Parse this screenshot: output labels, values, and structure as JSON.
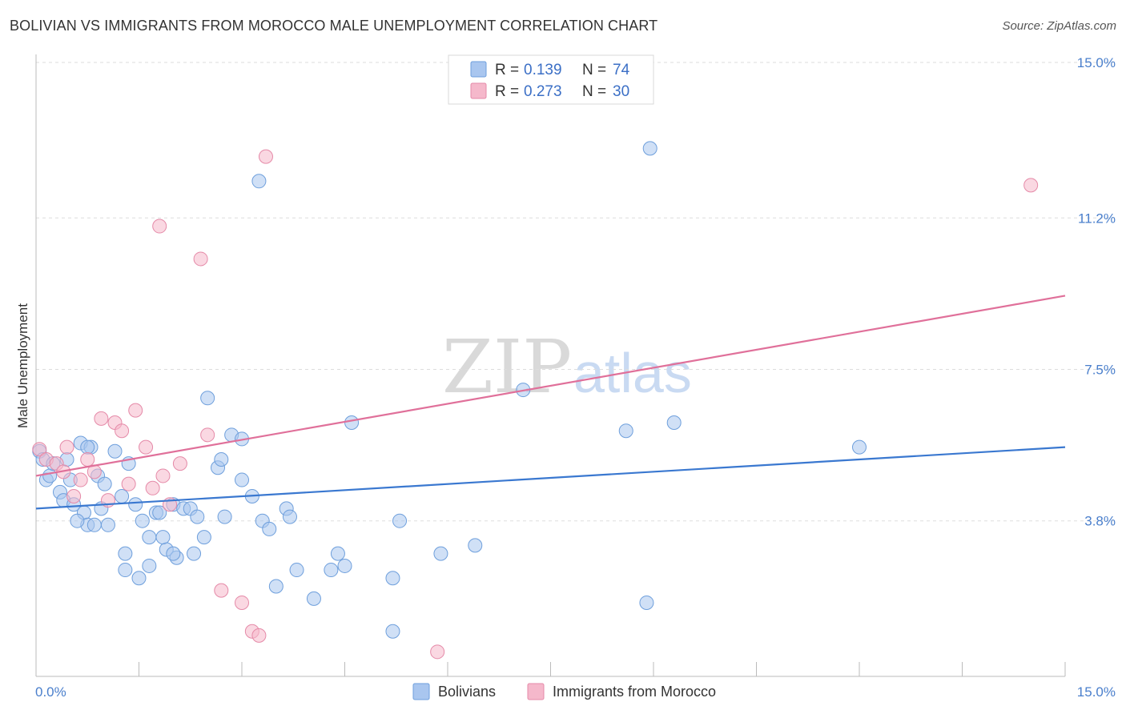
{
  "header": {
    "title": "BOLIVIAN VS IMMIGRANTS FROM MOROCCO MALE UNEMPLOYMENT CORRELATION CHART",
    "source": "Source: ZipAtlas.com"
  },
  "watermark": {
    "zip": "ZIP",
    "atlas": "atlas"
  },
  "stats": [
    {
      "r_label": "R =",
      "r_value": "0.139",
      "n_label": "N =",
      "n_value": "74",
      "color": "#a9c6ef"
    },
    {
      "r_label": "R =",
      "r_value": "0.273",
      "n_label": "N =",
      "n_value": "30",
      "color": "#f5b8cb"
    }
  ],
  "chart_data": {
    "type": "scatter",
    "title": "BOLIVIAN VS IMMIGRANTS FROM MOROCCO MALE UNEMPLOYMENT CORRELATION CHART",
    "xlabel": "",
    "ylabel": "Male Unemployment",
    "xlim": [
      0,
      15
    ],
    "ylim": [
      0,
      15
    ],
    "x_tick_labels": [
      {
        "value": 0,
        "label": "0.0%"
      },
      {
        "value": 15,
        "label": "15.0%"
      }
    ],
    "y_tick_labels": [
      {
        "value": 3.8,
        "label": "3.8%"
      },
      {
        "value": 7.5,
        "label": "7.5%"
      },
      {
        "value": 11.2,
        "label": "11.2%"
      },
      {
        "value": 15.0,
        "label": "15.0%"
      }
    ],
    "grid": true,
    "legend_position": "bottom-center",
    "series": [
      {
        "name": "Bolivians",
        "color": "#a9c6ef",
        "stroke": "#6e9fdc",
        "trend_color": "#3a78d0",
        "trend": {
          "x": [
            0,
            15
          ],
          "y": [
            4.1,
            5.6
          ]
        },
        "points": [
          [
            0.05,
            5.5
          ],
          [
            0.1,
            5.3
          ],
          [
            0.15,
            4.8
          ],
          [
            0.2,
            4.9
          ],
          [
            0.25,
            5.2
          ],
          [
            0.35,
            4.5
          ],
          [
            0.4,
            4.3
          ],
          [
            0.45,
            5.3
          ],
          [
            0.55,
            4.2
          ],
          [
            0.65,
            5.7
          ],
          [
            0.5,
            4.8
          ],
          [
            0.7,
            4.0
          ],
          [
            0.75,
            3.7
          ],
          [
            0.8,
            5.6
          ],
          [
            0.9,
            4.9
          ],
          [
            0.95,
            4.1
          ],
          [
            1.0,
            4.7
          ],
          [
            1.05,
            3.7
          ],
          [
            1.15,
            5.5
          ],
          [
            1.25,
            4.4
          ],
          [
            1.3,
            3.0
          ],
          [
            1.35,
            5.2
          ],
          [
            1.45,
            4.2
          ],
          [
            1.55,
            3.8
          ],
          [
            1.65,
            3.4
          ],
          [
            1.75,
            4.0
          ],
          [
            1.8,
            4.0
          ],
          [
            1.9,
            3.1
          ],
          [
            2.0,
            4.2
          ],
          [
            2.05,
            2.9
          ],
          [
            2.15,
            4.1
          ],
          [
            2.25,
            4.1
          ],
          [
            2.35,
            3.9
          ],
          [
            2.45,
            3.4
          ],
          [
            2.65,
            5.1
          ],
          [
            2.75,
            3.9
          ],
          [
            2.85,
            5.9
          ],
          [
            3.0,
            4.8
          ],
          [
            3.15,
            4.4
          ],
          [
            3.3,
            3.8
          ],
          [
            3.5,
            2.2
          ],
          [
            3.65,
            4.1
          ],
          [
            3.8,
            2.6
          ],
          [
            4.05,
            1.9
          ],
          [
            4.3,
            2.6
          ],
          [
            4.5,
            2.7
          ],
          [
            0.6,
            3.8
          ],
          [
            0.85,
            3.7
          ],
          [
            1.3,
            2.6
          ],
          [
            1.65,
            2.7
          ],
          [
            1.85,
            3.4
          ],
          [
            2.3,
            3.0
          ],
          [
            2.7,
            5.3
          ],
          [
            3.0,
            5.8
          ],
          [
            3.7,
            3.9
          ],
          [
            4.4,
            3.0
          ],
          [
            4.6,
            6.2
          ],
          [
            5.2,
            2.4
          ],
          [
            5.2,
            1.1
          ],
          [
            5.3,
            3.8
          ],
          [
            5.9,
            3.0
          ],
          [
            6.4,
            3.2
          ],
          [
            7.1,
            7.0
          ],
          [
            8.6,
            6.0
          ],
          [
            8.9,
            1.8
          ],
          [
            9.3,
            6.2
          ],
          [
            12.0,
            5.6
          ],
          [
            3.25,
            12.1
          ],
          [
            8.95,
            12.9
          ],
          [
            2.5,
            6.8
          ],
          [
            3.4,
            3.6
          ],
          [
            2.0,
            3.0
          ],
          [
            0.75,
            5.6
          ],
          [
            1.5,
            2.4
          ]
        ]
      },
      {
        "name": "Immigrants from Morocco",
        "color": "#f5b8cb",
        "stroke": "#e58aa8",
        "trend_color": "#e0709a",
        "trend": {
          "x": [
            0,
            15
          ],
          "y": [
            4.9,
            9.3
          ]
        },
        "points": [
          [
            0.05,
            5.55
          ],
          [
            0.15,
            5.3
          ],
          [
            0.3,
            5.2
          ],
          [
            0.4,
            5.0
          ],
          [
            0.45,
            5.6
          ],
          [
            0.55,
            4.4
          ],
          [
            0.65,
            4.8
          ],
          [
            0.75,
            5.3
          ],
          [
            0.85,
            5.0
          ],
          [
            0.95,
            6.3
          ],
          [
            1.05,
            4.3
          ],
          [
            1.15,
            6.2
          ],
          [
            1.25,
            6.0
          ],
          [
            1.35,
            4.7
          ],
          [
            1.45,
            6.5
          ],
          [
            1.6,
            5.6
          ],
          [
            1.7,
            4.6
          ],
          [
            1.85,
            4.9
          ],
          [
            1.95,
            4.2
          ],
          [
            2.1,
            5.2
          ],
          [
            2.5,
            5.9
          ],
          [
            2.7,
            2.1
          ],
          [
            3.0,
            1.8
          ],
          [
            3.15,
            1.1
          ],
          [
            3.25,
            1.0
          ],
          [
            3.35,
            12.7
          ],
          [
            1.8,
            11.0
          ],
          [
            2.4,
            10.2
          ],
          [
            5.85,
            0.6
          ],
          [
            14.5,
            12.0
          ]
        ]
      }
    ]
  },
  "legend": {
    "items": [
      {
        "label": "Bolivians",
        "color": "#a9c6ef",
        "stroke": "#6e9fdc"
      },
      {
        "label": "Immigrants from Morocco",
        "color": "#f5b8cb",
        "stroke": "#e58aa8"
      }
    ]
  }
}
